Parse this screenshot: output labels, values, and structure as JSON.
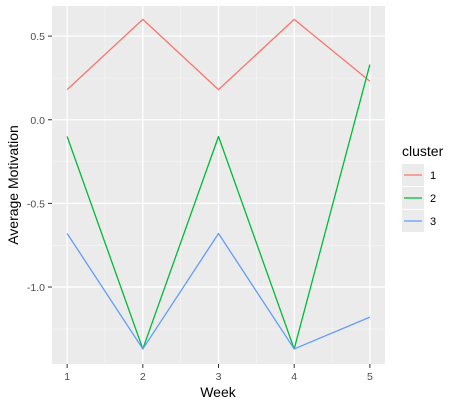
{
  "chart_data": {
    "type": "line",
    "xlabel": "Week",
    "ylabel": "Average Motivation",
    "x": [
      1,
      2,
      3,
      4,
      5
    ],
    "xticks": [
      "1",
      "2",
      "3",
      "4",
      "5"
    ],
    "yticks": [
      {
        "value": 0.5,
        "label": "0.5"
      },
      {
        "value": 0.0,
        "label": "0.0"
      },
      {
        "value": -0.5,
        "label": "-0.5"
      },
      {
        "value": -1.0,
        "label": "-1.0"
      }
    ],
    "xlim": [
      0.8,
      5.2
    ],
    "ylim": [
      -1.46,
      0.68
    ],
    "grid": true,
    "legend": {
      "title": "cluster",
      "position": "right"
    },
    "series": [
      {
        "name": "1",
        "color": "#F8766D",
        "values": [
          0.18,
          0.6,
          0.18,
          0.6,
          0.23
        ]
      },
      {
        "name": "2",
        "color": "#00BA38",
        "values": [
          -0.1,
          -1.37,
          -0.1,
          -1.37,
          0.33
        ]
      },
      {
        "name": "3",
        "color": "#619CFF",
        "values": [
          -0.68,
          -1.37,
          -0.68,
          -1.37,
          -1.18
        ]
      }
    ]
  }
}
